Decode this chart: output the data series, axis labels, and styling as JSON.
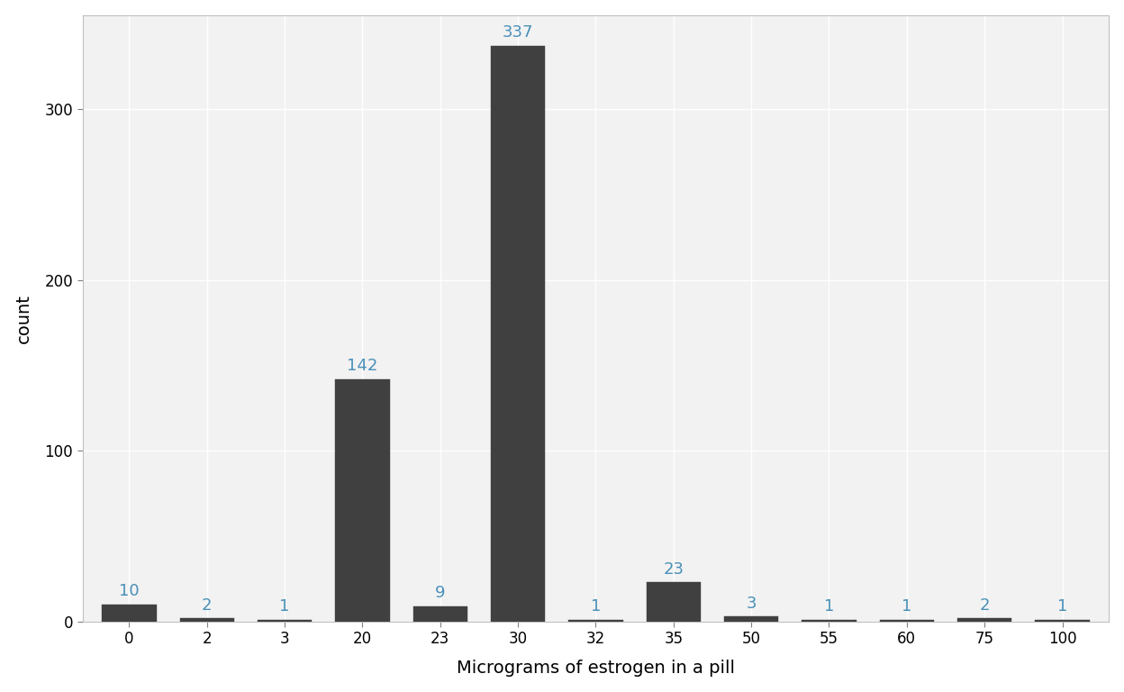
{
  "categories": [
    0,
    2,
    3,
    20,
    23,
    30,
    32,
    35,
    50,
    55,
    60,
    75,
    100
  ],
  "cat_labels": [
    "0",
    "2",
    "3",
    "20",
    "23",
    "30",
    "32",
    "35",
    "50",
    "55",
    "60",
    "75",
    "100"
  ],
  "counts": [
    10,
    2,
    1,
    142,
    9,
    337,
    1,
    23,
    3,
    1,
    1,
    2,
    1
  ],
  "bar_color": "#404040",
  "bar_edge_color": "#404040",
  "label_color": "#4a90b8",
  "panel_bg_color": "#f2f2f2",
  "outer_bg_color": "#ffffff",
  "grid_color": "#ffffff",
  "xlabel": "Micrograms of estrogen in a pill",
  "ylabel": "count",
  "ylim": [
    0,
    355
  ],
  "yticks": [
    0,
    100,
    200,
    300
  ],
  "axis_label_fontsize": 14,
  "tick_fontsize": 12,
  "count_label_fontsize": 13,
  "bar_width": 0.7
}
